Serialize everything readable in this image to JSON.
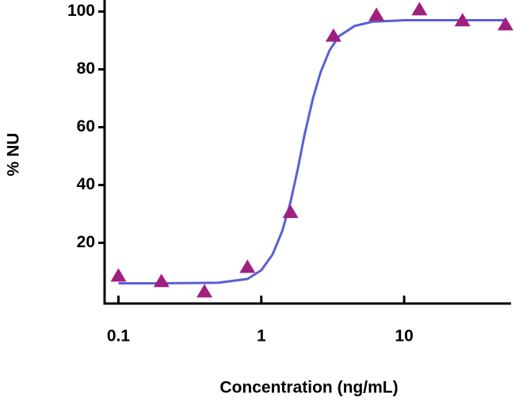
{
  "chart_data": {
    "type": "scatter",
    "x_label": "Concentration (ng/mL)",
    "y_label": "% NU",
    "xscale": "log",
    "xlim": [
      0.08,
      56
    ],
    "xticks": [
      0.1,
      1,
      10
    ],
    "ylim": [
      -1,
      104
    ],
    "yticks": [
      20,
      40,
      60,
      80,
      100
    ],
    "series": [
      {
        "kind": "points",
        "marker": "triangle",
        "color": "#a0207f",
        "x": [
          0.1,
          0.2,
          0.4,
          0.8,
          1.6,
          3.2,
          6.4,
          12.8,
          25.6,
          51.2
        ],
        "values": [
          8.5,
          6.6,
          3,
          11.5,
          30.5,
          91.5,
          98.7,
          100.6,
          96.8,
          95.4
        ]
      },
      {
        "kind": "line",
        "color": "#5b5fd6",
        "x": [
          0.1,
          0.2,
          0.5,
          0.8,
          1.0,
          1.2,
          1.4,
          1.6,
          1.8,
          2.0,
          2.3,
          2.6,
          3.0,
          3.5,
          4.5,
          6,
          10,
          20,
          51.2
        ],
        "values": [
          6,
          6,
          6.2,
          7.5,
          10.5,
          16,
          24,
          34,
          45.5,
          57,
          70,
          79,
          86.5,
          91.5,
          95,
          96.5,
          97,
          97,
          97
        ]
      }
    ]
  }
}
